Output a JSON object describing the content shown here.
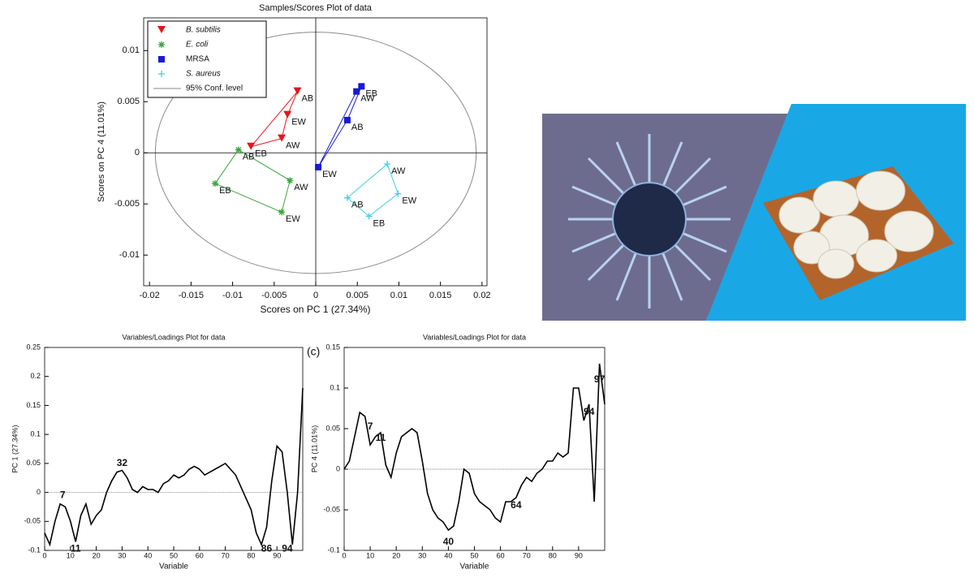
{
  "chart_data": [
    {
      "type": "scatter",
      "title": "Samples/Scores Plot of data",
      "x_label": "Scores on PC 1 (27.34%)",
      "y_label": "Scores on PC 4 (11.01%)",
      "xlim": [
        -0.0207,
        0.0206
      ],
      "ylim": [
        -0.013,
        0.0132
      ],
      "xticks": [
        -0.02,
        -0.015,
        -0.01,
        -0.005,
        0,
        0.005,
        0.01,
        0.015,
        0.02
      ],
      "yticks": [
        -0.01,
        -0.005,
        0,
        0.005,
        0.01
      ],
      "legend": "upper left",
      "series": [
        {
          "name": "B. subtilis",
          "color": "#e8141b",
          "marker": "triangle-down",
          "labels": [
            "AB",
            "EW",
            "AW",
            "EB"
          ],
          "x": [
            -0.0022,
            -0.0034,
            -0.0041,
            -0.0078
          ],
          "y": [
            0.006,
            0.0037,
            0.0014,
            0.0006
          ]
        },
        {
          "name": "E. coli",
          "color": "#3aa83a",
          "marker": "star",
          "labels": [
            "AB",
            "AW",
            "EW",
            "EB"
          ],
          "x": [
            -0.0093,
            -0.0031,
            -0.0041,
            -0.0121
          ],
          "y": [
            0.0003,
            -0.0027,
            -0.0058,
            -0.003
          ]
        },
        {
          "name": "MRSA",
          "color": "#1a1ad6",
          "marker": "square",
          "labels": [
            "AW",
            "EB",
            "AB",
            "EW"
          ],
          "x": [
            0.0049,
            0.0055,
            0.0038,
            0.0003
          ],
          "y": [
            0.006,
            0.0065,
            0.0032,
            -0.0014
          ]
        },
        {
          "name": "S. aureus",
          "color": "#3fd0e0",
          "marker": "plus",
          "labels": [
            "AW",
            "EW",
            "EB",
            "AB"
          ],
          "x": [
            0.0086,
            0.0099,
            0.0064,
            0.0038
          ],
          "y": [
            -0.0011,
            -0.004,
            -0.0062,
            -0.0044
          ]
        }
      ],
      "ellipse": {
        "name": "95% Conf. level",
        "color": "#8a8a8a",
        "x_radius": 0.0193,
        "y_radius": 0.0118
      }
    },
    {
      "type": "line",
      "title": "Variables/Loadings Plot for data",
      "x_label": "Variable",
      "y_label": "PC 1 (27.34%)",
      "xlim": [
        0,
        100
      ],
      "ylim": [
        -0.1,
        0.25
      ],
      "xticks": [
        0,
        10,
        20,
        30,
        40,
        50,
        60,
        70,
        80,
        90
      ],
      "yticks": [
        -0.1,
        -0.05,
        0,
        0.05,
        0.1,
        0.15,
        0.2,
        0.25
      ],
      "series": [
        {
          "color": "#000000",
          "x": [
            0,
            2,
            4,
            6,
            8,
            10,
            12,
            14,
            16,
            18,
            20,
            22,
            24,
            26,
            28,
            30,
            32,
            34,
            36,
            38,
            40,
            42,
            44,
            46,
            48,
            50,
            52,
            54,
            56,
            58,
            60,
            62,
            64,
            66,
            68,
            70,
            72,
            74,
            76,
            78,
            80,
            82,
            84,
            86,
            88,
            90,
            92,
            94,
            96,
            98,
            100
          ],
          "values": [
            -0.07,
            -0.09,
            -0.05,
            -0.02,
            -0.025,
            -0.05,
            -0.085,
            -0.04,
            -0.02,
            -0.055,
            -0.04,
            -0.03,
            0.0,
            0.02,
            0.035,
            0.038,
            0.025,
            0.005,
            0.0,
            0.01,
            0.005,
            0.005,
            0.0,
            0.015,
            0.02,
            0.03,
            0.025,
            0.03,
            0.04,
            0.045,
            0.04,
            0.03,
            0.035,
            0.04,
            0.045,
            0.05,
            0.04,
            0.03,
            0.01,
            -0.01,
            -0.03,
            -0.07,
            -0.09,
            -0.06,
            0.02,
            0.08,
            0.07,
            0.0,
            -0.09,
            0.0,
            0.18
          ]
        }
      ],
      "annotations": [
        {
          "label": "7",
          "x": 7,
          "y": -0.005
        },
        {
          "label": "11",
          "x": 12,
          "y": -0.098
        },
        {
          "label": "32",
          "x": 30,
          "y": 0.05
        },
        {
          "label": "86",
          "x": 86,
          "y": -0.098
        },
        {
          "label": "94",
          "x": 94,
          "y": -0.098
        }
      ]
    },
    {
      "type": "line",
      "title": "Variables/Loadings Plot for data",
      "panel_label": "(c)",
      "x_label": "Variable",
      "y_label": "PC 4 (11.01%)",
      "xlim": [
        0,
        100
      ],
      "ylim": [
        -0.1,
        0.15
      ],
      "xticks": [
        0,
        10,
        20,
        30,
        40,
        50,
        60,
        70,
        80,
        90
      ],
      "yticks": [
        -0.1,
        -0.05,
        0,
        0.05,
        0.1,
        0.15
      ],
      "series": [
        {
          "color": "#000000",
          "x": [
            0,
            2,
            4,
            6,
            8,
            10,
            12,
            14,
            16,
            18,
            20,
            22,
            24,
            26,
            28,
            30,
            32,
            34,
            36,
            38,
            40,
            42,
            44,
            46,
            48,
            50,
            52,
            54,
            56,
            58,
            60,
            62,
            64,
            66,
            68,
            70,
            72,
            74,
            76,
            78,
            80,
            82,
            84,
            86,
            88,
            90,
            92,
            94,
            96,
            98,
            100
          ],
          "values": [
            0.0,
            0.01,
            0.04,
            0.07,
            0.065,
            0.03,
            0.04,
            0.045,
            0.005,
            -0.01,
            0.02,
            0.04,
            0.045,
            0.05,
            0.045,
            0.01,
            -0.03,
            -0.05,
            -0.06,
            -0.065,
            -0.075,
            -0.07,
            -0.04,
            0.0,
            -0.005,
            -0.03,
            -0.04,
            -0.045,
            -0.05,
            -0.06,
            -0.065,
            -0.04,
            -0.04,
            -0.035,
            -0.02,
            -0.01,
            -0.015,
            -0.005,
            0.0,
            0.01,
            0.01,
            0.02,
            0.015,
            0.02,
            0.1,
            0.1,
            0.06,
            0.08,
            -0.04,
            0.13,
            0.08
          ]
        }
      ],
      "annotations": [
        {
          "label": "7",
          "x": 10,
          "y": 0.052
        },
        {
          "label": "11",
          "x": 14,
          "y": 0.038
        },
        {
          "label": "40",
          "x": 40,
          "y": -0.09
        },
        {
          "label": "64",
          "x": 66,
          "y": -0.045
        },
        {
          "label": "94",
          "x": 94,
          "y": 0.07
        },
        {
          "label": "97",
          "x": 98,
          "y": 0.11
        }
      ]
    }
  ]
}
